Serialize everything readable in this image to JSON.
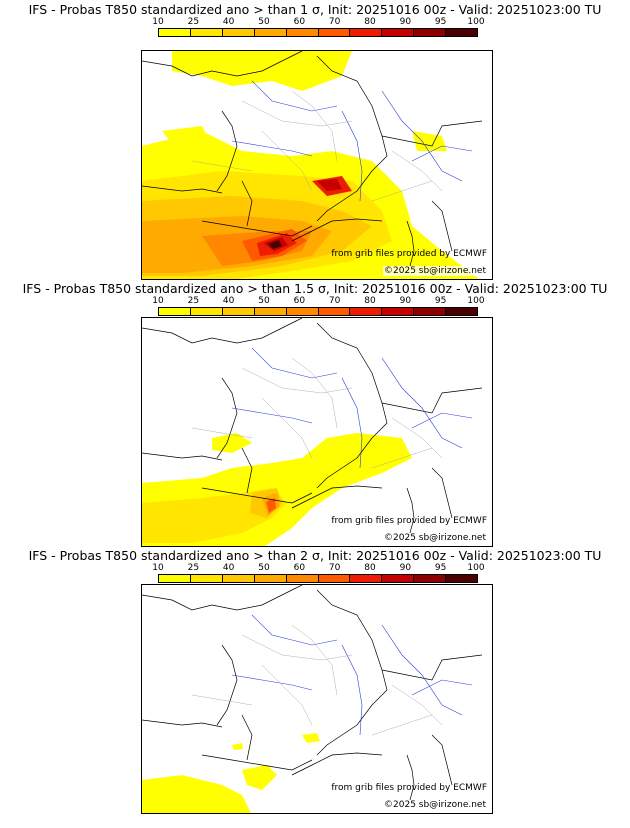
{
  "legend": {
    "ticks": [
      "10",
      "25",
      "40",
      "50",
      "60",
      "70",
      "80",
      "90",
      "95",
      "100"
    ],
    "colors": [
      "#ffff00",
      "#ffe500",
      "#ffc800",
      "#ffaa00",
      "#ff8800",
      "#ff5a00",
      "#ee1c00",
      "#c40000",
      "#8e0000",
      "#4a0000"
    ]
  },
  "panels": [
    {
      "title": "IFS - Probas T850  standardized ano > than 1 σ, Init: 20251016 00z - Valid: 20251023:00 TU",
      "credit_source": "from grib files provided by ECMWF",
      "credit_copyright": "©2025 sb@irizone.net"
    },
    {
      "title": "IFS - Probas T850  standardized ano > than 1.5 σ, Init: 20251016 00z - Valid: 20251023:00 TU",
      "credit_source": "from grib files provided by ECMWF",
      "credit_copyright": "©2025 sb@irizone.net"
    },
    {
      "title": "IFS - Probas T850  standardized ano > than 2 σ, Init: 20251016 00z - Valid: 20251023:00 TU",
      "credit_source": "from grib files provided by ECMWF",
      "credit_copyright": "©2025 sb@irizone.net"
    }
  ]
}
